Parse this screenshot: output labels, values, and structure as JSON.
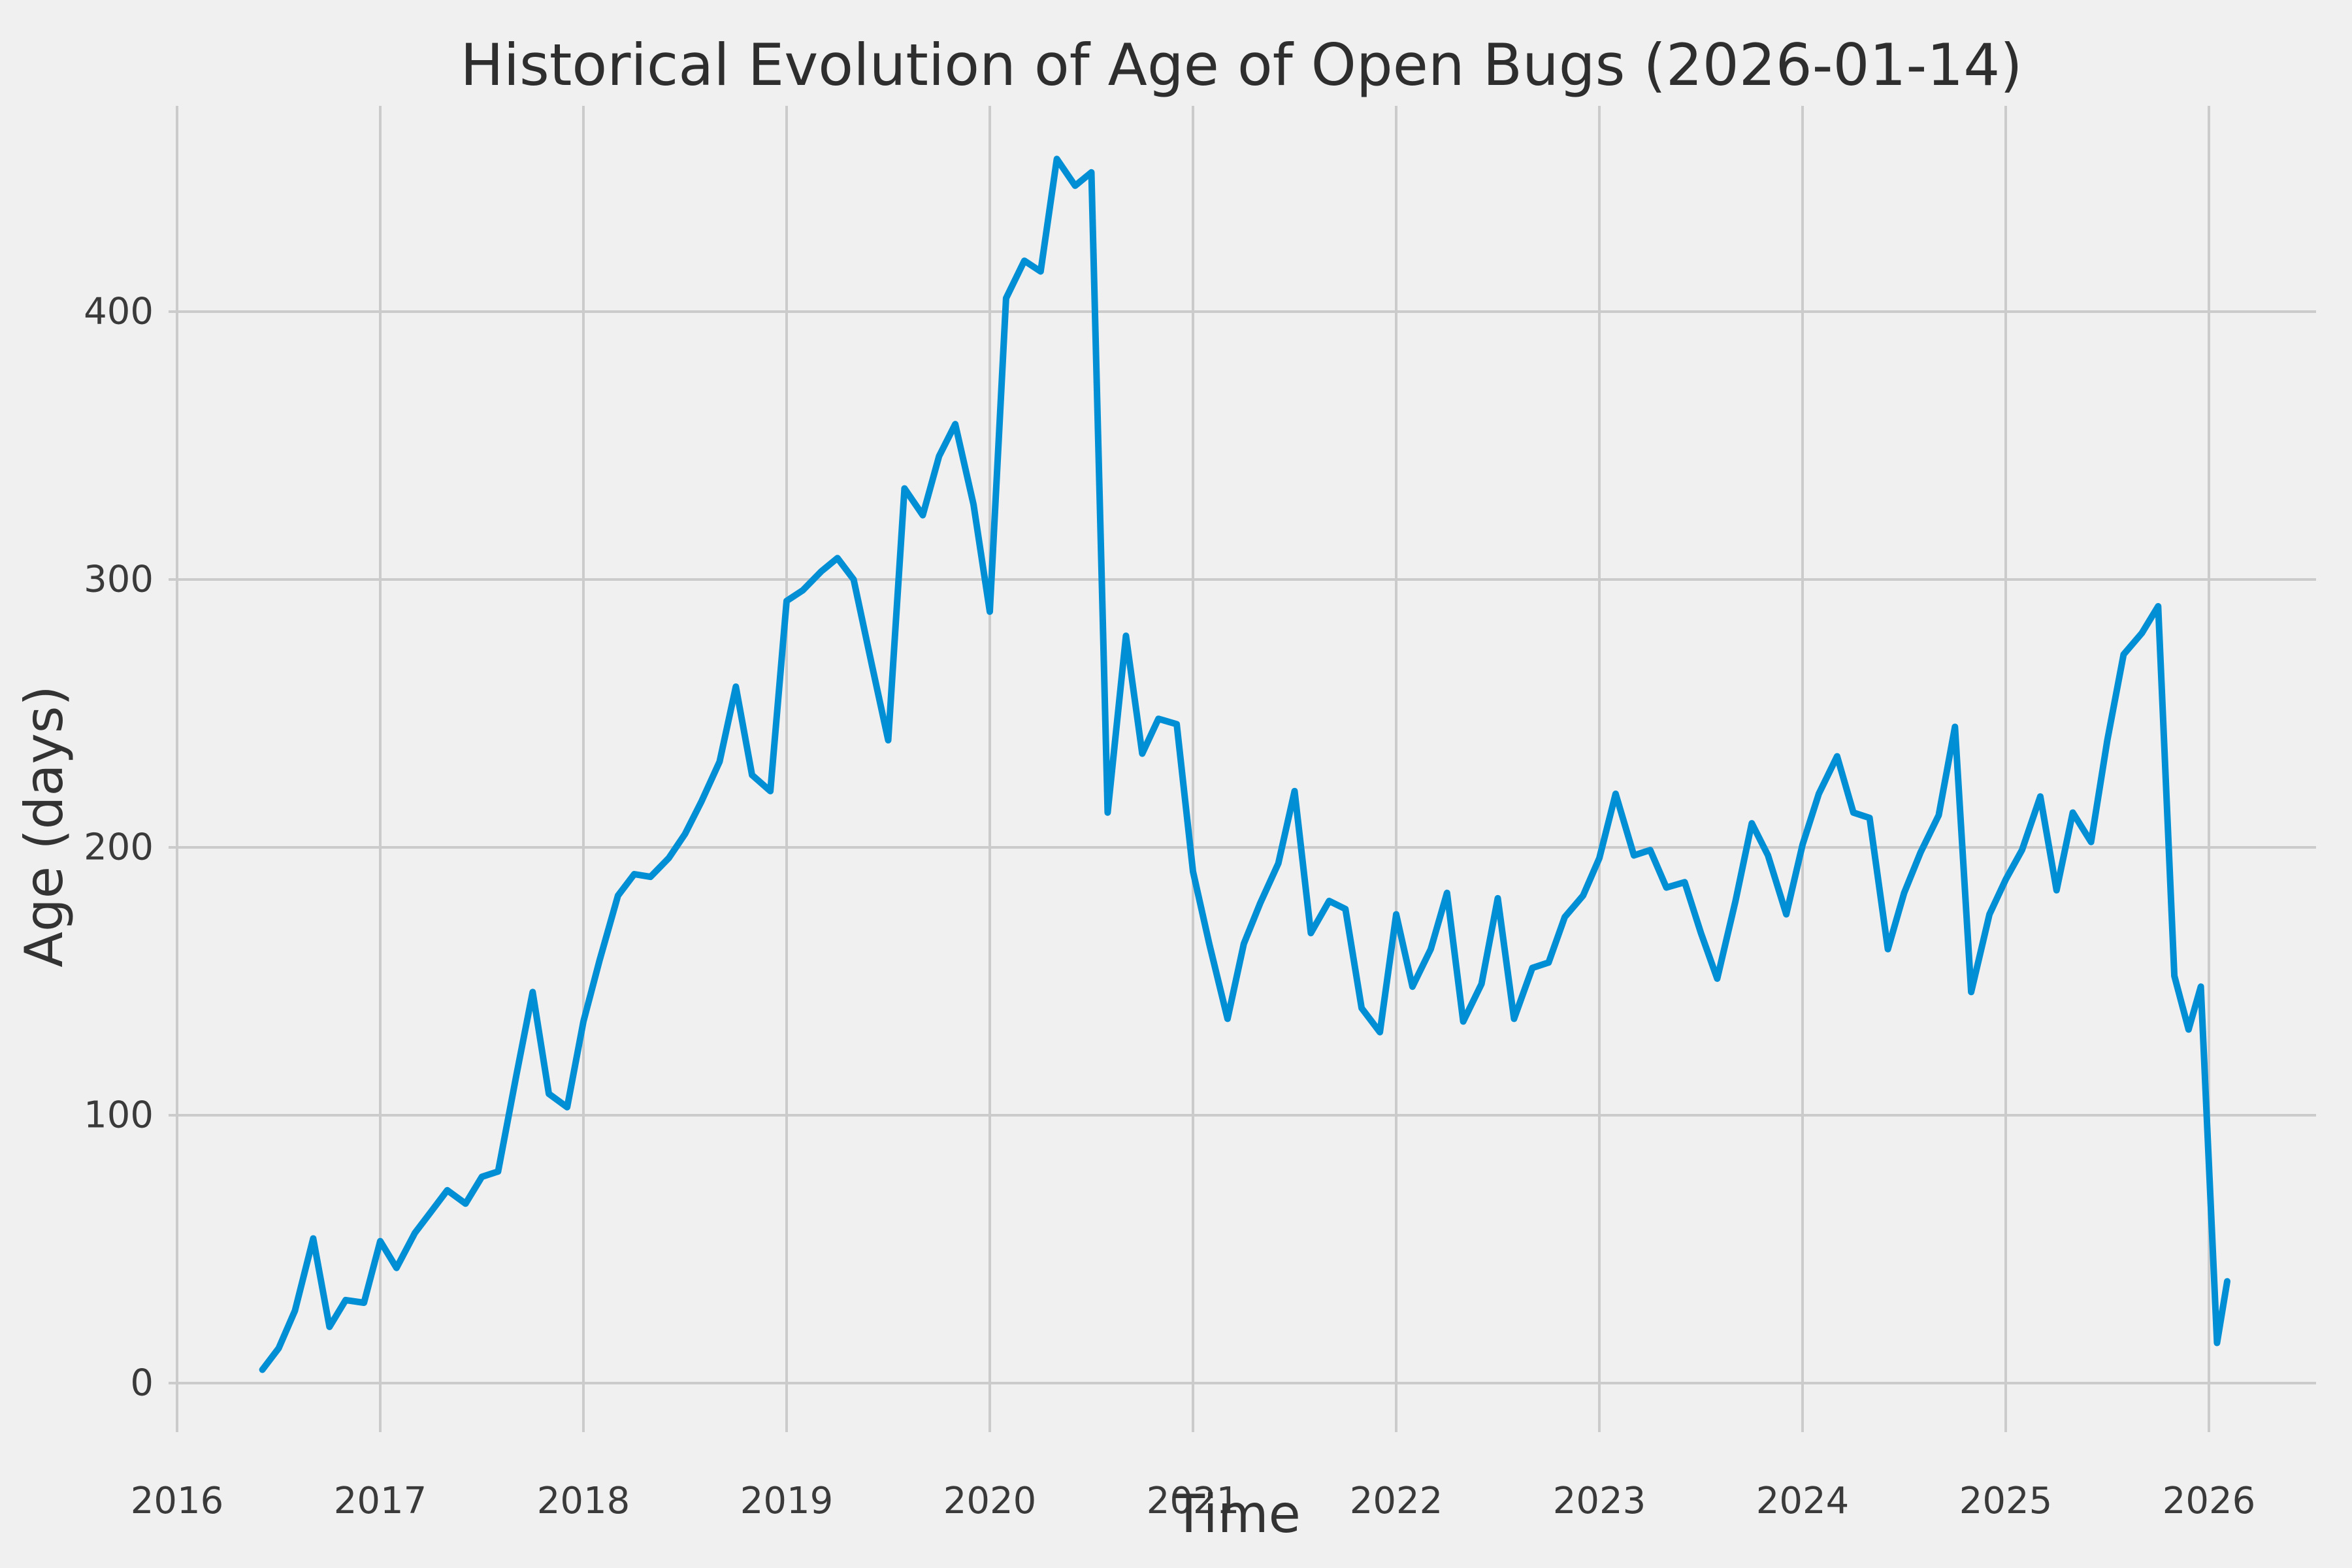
{
  "page": {
    "background_color": "#f0f0f0"
  },
  "chart_data": {
    "type": "line",
    "title": "Historical Evolution of Age of Open Bugs (2026-01-14)",
    "xlabel": "Time",
    "ylabel": "Age (days)",
    "x_ticks": [
      2016,
      2017,
      2018,
      2019,
      2020,
      2021,
      2022,
      2023,
      2024,
      2025,
      2026
    ],
    "y_ticks": [
      0,
      100,
      200,
      300,
      400
    ],
    "xlim": [
      2015.96,
      2026.5
    ],
    "ylim": [
      -32,
      476
    ],
    "grid": true,
    "legend": false,
    "style": {
      "line_color": "#008fd5",
      "grid_color": "#cbcbcb",
      "background_color": "#f0f0f0",
      "text_color": "#3a3a3a",
      "line_width": 10
    },
    "series": [
      {
        "x": [
          2016.42,
          2016.5,
          2016.58,
          2016.67,
          2016.75,
          2016.83,
          2016.92,
          2017.0,
          2017.08,
          2017.17,
          2017.25,
          2017.33,
          2017.42,
          2017.5,
          2017.58,
          2017.67,
          2017.75,
          2017.83,
          2017.92,
          2018.0,
          2018.08,
          2018.17,
          2018.25,
          2018.33,
          2018.42,
          2018.5,
          2018.58,
          2018.67,
          2018.75,
          2018.83,
          2018.92,
          2019.0,
          2019.08,
          2019.17,
          2019.25,
          2019.33,
          2019.42,
          2019.5,
          2019.58,
          2019.67,
          2019.75,
          2019.83,
          2019.92,
          2020.0,
          2020.08,
          2020.17,
          2020.25,
          2020.33,
          2020.42,
          2020.5,
          2020.58,
          2020.67,
          2020.75,
          2020.83,
          2020.92,
          2021.0,
          2021.08,
          2021.17,
          2021.25,
          2021.33,
          2021.42,
          2021.5,
          2021.58,
          2021.67,
          2021.75,
          2021.83,
          2021.92,
          2022.0,
          2022.08,
          2022.17,
          2022.25,
          2022.33,
          2022.42,
          2022.5,
          2022.58,
          2022.67,
          2022.75,
          2022.83,
          2022.92,
          2023.0,
          2023.08,
          2023.17,
          2023.25,
          2023.33,
          2023.42,
          2023.5,
          2023.58,
          2023.67,
          2023.75,
          2023.83,
          2023.92,
          2024.0,
          2024.08,
          2024.17,
          2024.25,
          2024.33,
          2024.42,
          2024.5,
          2024.58,
          2024.67,
          2024.75,
          2024.83,
          2024.92,
          2025.0,
          2025.08,
          2025.17,
          2025.25,
          2025.33,
          2025.42,
          2025.5,
          2025.58,
          2025.67,
          2025.75,
          2025.83,
          2025.9,
          2025.96,
          2026.04,
          2026.09
        ],
        "y": [
          5,
          13,
          27,
          54,
          21,
          31,
          30,
          53,
          43,
          56,
          64,
          72,
          67,
          77,
          79,
          115,
          146,
          108,
          103,
          135,
          158,
          182,
          190,
          189,
          196,
          205,
          217,
          232,
          260,
          227,
          221,
          292,
          296,
          303,
          308,
          300,
          268,
          240,
          334,
          324,
          346,
          358,
          328,
          288,
          405,
          419,
          415,
          457,
          447,
          452,
          213,
          279,
          235,
          248,
          246,
          191,
          164,
          136,
          164,
          179,
          194,
          221,
          168,
          180,
          177,
          140,
          131,
          175,
          148,
          162,
          183,
          135,
          149,
          181,
          136,
          155,
          157,
          174,
          182,
          196,
          220,
          197,
          199,
          185,
          187,
          168,
          151,
          180,
          209,
          197,
          175,
          201,
          220,
          234,
          213,
          211,
          162,
          183,
          198,
          212,
          245,
          146,
          175,
          188,
          199,
          219,
          184,
          213,
          202,
          240,
          272,
          280,
          290,
          152,
          132,
          148,
          15,
          38
        ]
      }
    ]
  }
}
